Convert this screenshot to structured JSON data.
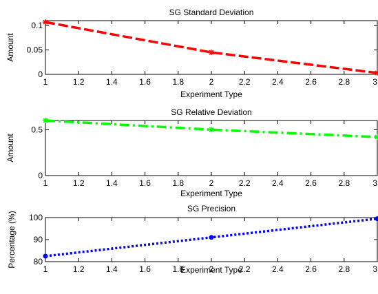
{
  "chart_data": [
    {
      "type": "line",
      "title": "SG Standard Deviation",
      "xlabel": "Experiment Type",
      "ylabel": "Amount",
      "xlim": [
        1,
        3
      ],
      "ylim": [
        0,
        0.11
      ],
      "xticks": [
        1,
        1.2,
        1.4,
        1.6,
        1.8,
        2,
        2.2,
        2.4,
        2.6,
        2.8,
        3
      ],
      "xticklabels": [
        "1",
        "1.2",
        "1.4",
        "1.6",
        "1.8",
        "2",
        "2.2",
        "2.4",
        "2.6",
        "2.8",
        "3"
      ],
      "yticks": [
        0,
        0.05,
        0.1
      ],
      "yticklabels": [
        "0",
        "0.05",
        "0.1"
      ],
      "grid": false,
      "series": [
        {
          "x": [
            1,
            2,
            3
          ],
          "y": [
            0.107,
            0.045,
            0.003
          ],
          "color": "#ff0000",
          "linestyle": "dashed",
          "marker": "*"
        }
      ]
    },
    {
      "type": "line",
      "title": "SG Relative Deviation",
      "xlabel": "Experiment Type",
      "ylabel": "Amount",
      "xlim": [
        1,
        3
      ],
      "ylim": [
        0,
        0.6
      ],
      "xticks": [
        1,
        1.2,
        1.4,
        1.6,
        1.8,
        2,
        2.2,
        2.4,
        2.6,
        2.8,
        3
      ],
      "xticklabels": [
        "1",
        "1.2",
        "1.4",
        "1.6",
        "1.8",
        "2",
        "2.2",
        "2.4",
        "2.6",
        "2.8",
        "3"
      ],
      "yticks": [
        0,
        0.5
      ],
      "yticklabels": [
        "0",
        "0.5"
      ],
      "grid": false,
      "series": [
        {
          "x": [
            1,
            2,
            3
          ],
          "y": [
            0.6,
            0.5,
            0.42
          ],
          "color": "#00ff00",
          "linestyle": "dashdot",
          "marker": "*"
        }
      ]
    },
    {
      "type": "line",
      "title": "SG Precision",
      "xlabel": "Experiment Type",
      "ylabel": "Percentage (%)",
      "xlim": [
        1,
        3
      ],
      "ylim": [
        80,
        100
      ],
      "xticks": [
        1,
        1.2,
        1.4,
        1.6,
        1.8,
        2,
        2.2,
        2.4,
        2.6,
        2.8,
        3
      ],
      "xticklabels": [
        "1",
        "1.2",
        "1.4",
        "1.6",
        "1.8",
        "2",
        "2.2",
        "2.4",
        "2.6",
        "2.8",
        "3"
      ],
      "yticks": [
        80,
        90,
        100
      ],
      "yticklabels": [
        "80",
        "90",
        "100"
      ],
      "grid": false,
      "series": [
        {
          "x": [
            1,
            2,
            3
          ],
          "y": [
            82.5,
            91,
            99.5
          ],
          "color": "#0000ff",
          "linestyle": "dotted",
          "marker": "."
        }
      ]
    }
  ]
}
